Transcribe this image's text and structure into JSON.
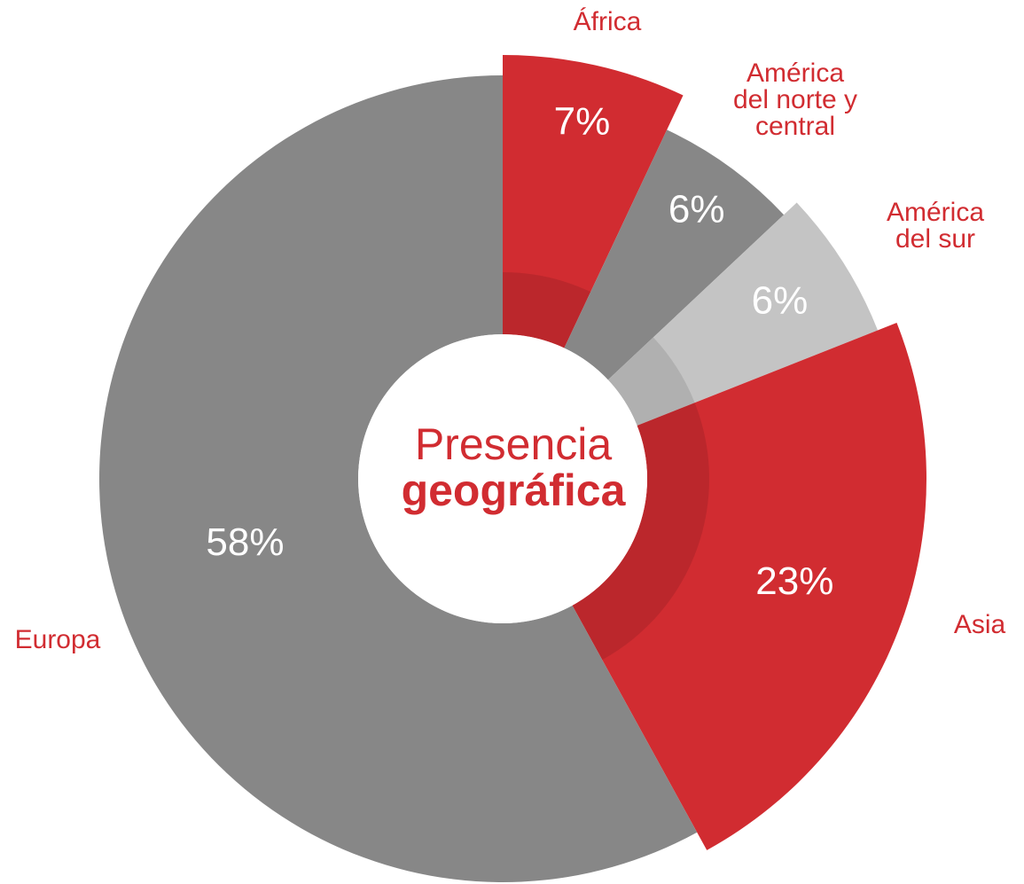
{
  "chart_data": {
    "type": "pie",
    "title": [
      "Presencia",
      "geográfica"
    ],
    "categories": [
      "África",
      "América del norte y central",
      "América del sur",
      "Asia",
      "Europa"
    ],
    "values": [
      7,
      6,
      6,
      23,
      58
    ],
    "value_labels": [
      "7%",
      "6%",
      "6%",
      "23%",
      "58%"
    ],
    "colors": [
      "#d12c31",
      "#878787",
      "#c4c4c4",
      "#d12c31",
      "#878787"
    ],
    "donut": true
  }
}
